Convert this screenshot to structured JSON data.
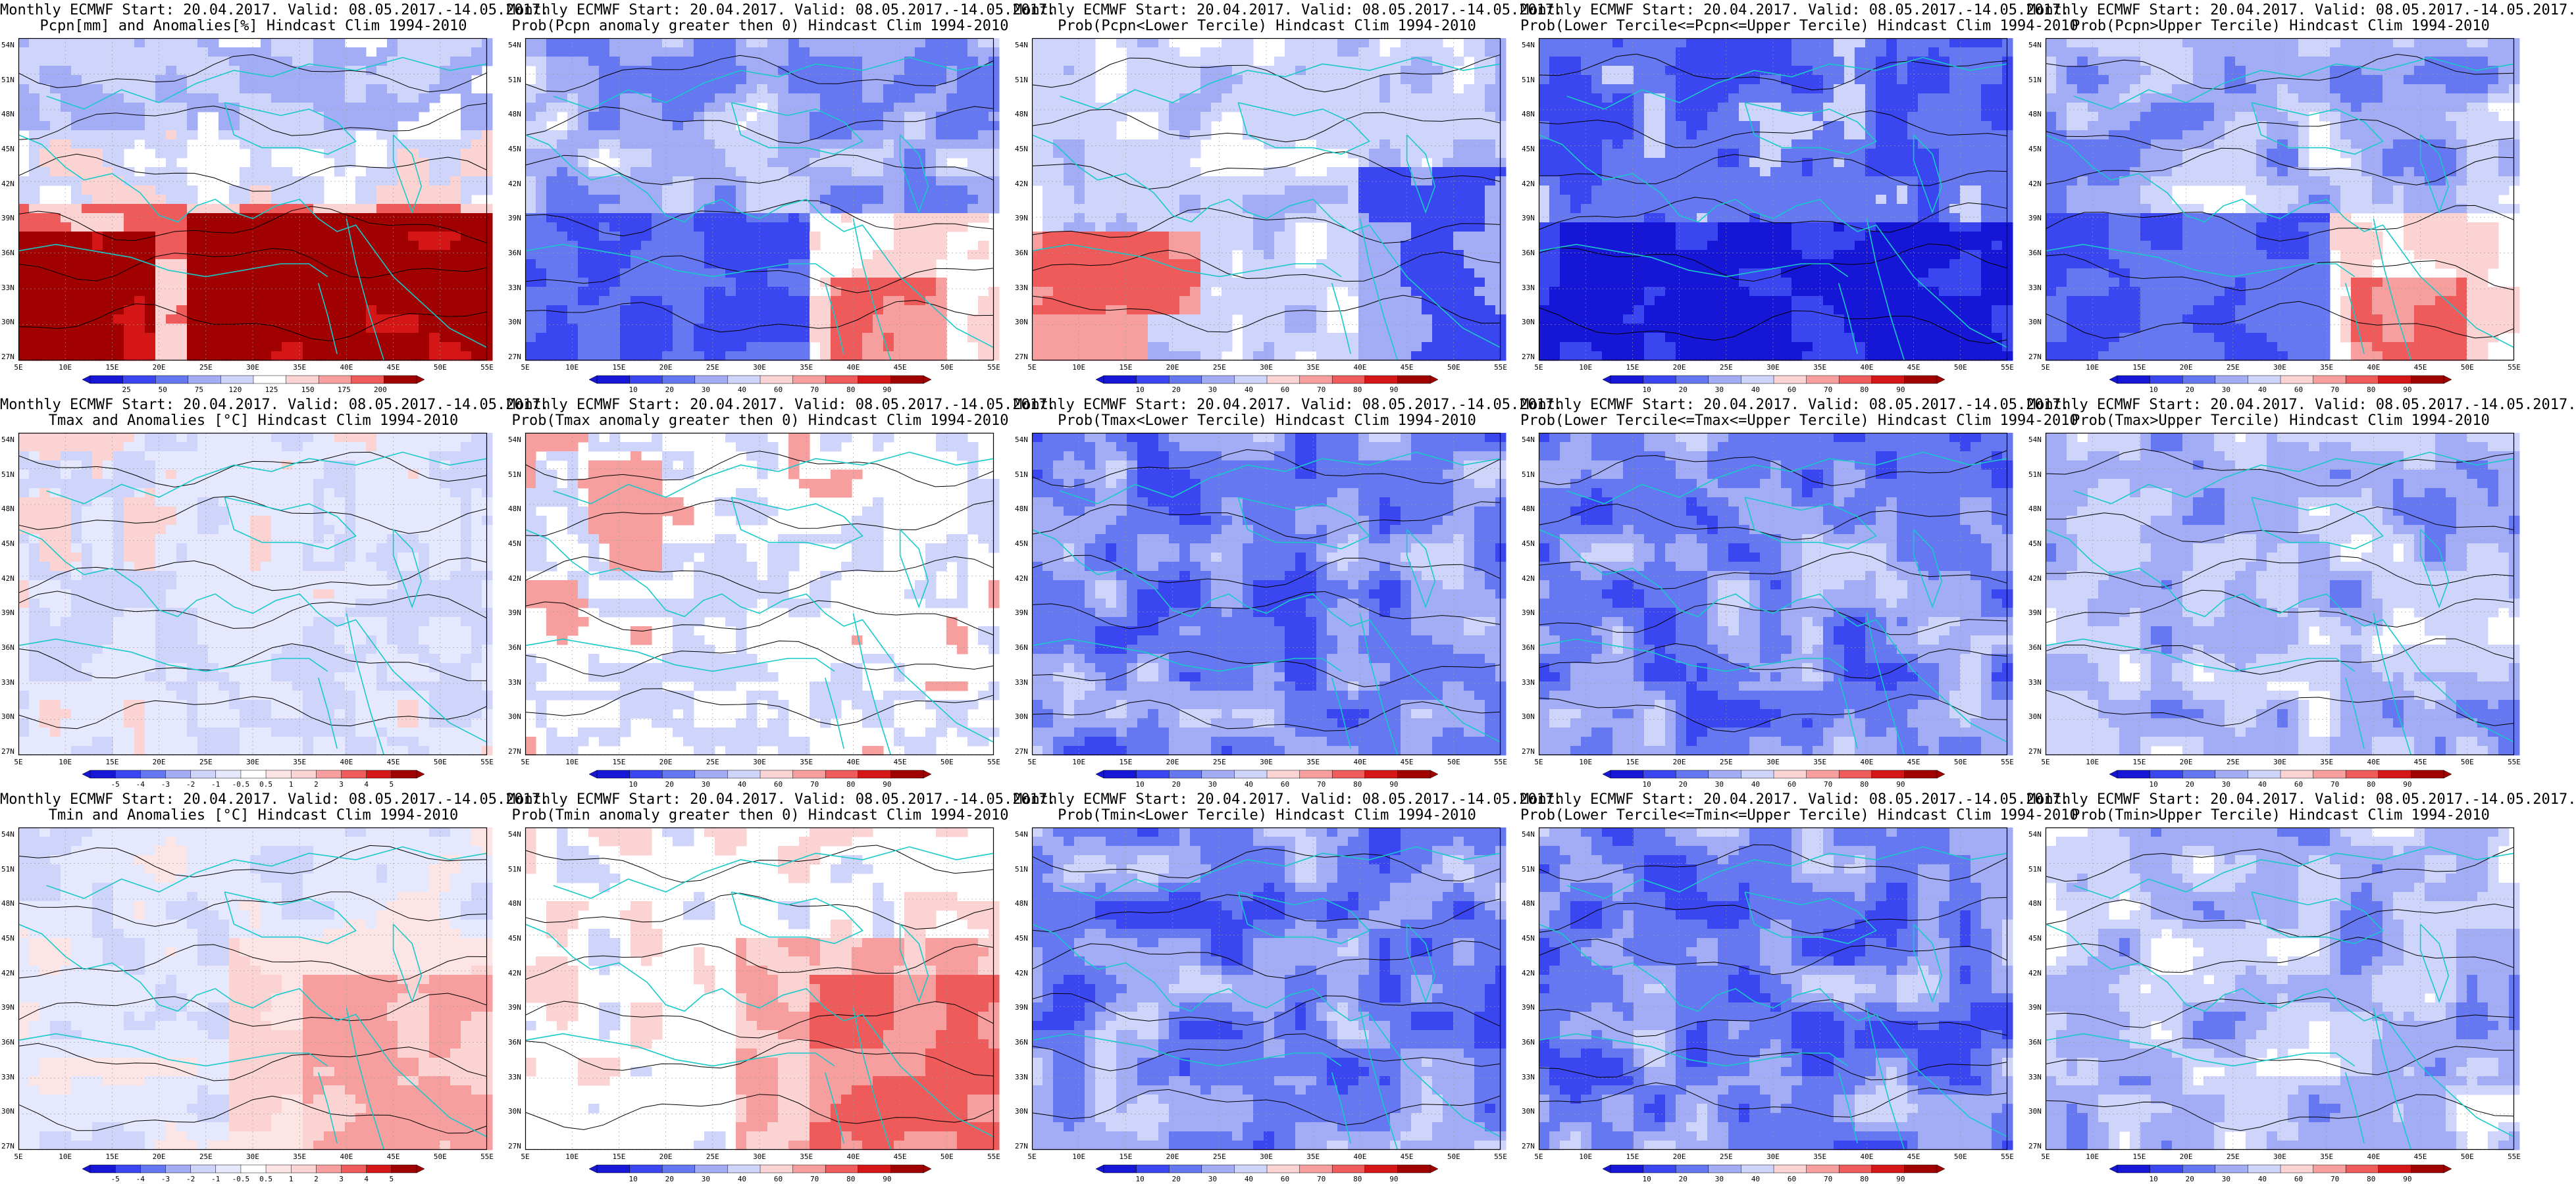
{
  "figure": {
    "panels": [
      {
        "title_line1": "Monthly ECMWF Start: 20.04.2017. Valid: 08.05.2017.-14.05.2017.",
        "title_line2": "Pcpn[mm] and Anomalies[%] Hindcast Clim 1994-2010",
        "colorbar_labels": [
          "25",
          "50",
          "75",
          "120",
          "125",
          "150",
          "175",
          "200"
        ],
        "palette": "anomaly_pcpn",
        "scheme": "pcpn"
      },
      {
        "title_line1": "Monthly ECMWF Start: 20.04.2017. Valid: 08.05.2017.-14.05.2017.",
        "title_line2": "Prob(Pcpn anomaly greater then 0) Hindcast Clim 1994-2010",
        "colorbar_labels": [
          "10",
          "20",
          "30",
          "40",
          "60",
          "70",
          "80",
          "90"
        ],
        "palette": "prob",
        "scheme": "prob_mixed"
      },
      {
        "title_line1": "Monthly ECMWF Start: 20.04.2017. Valid: 08.05.2017.-14.05.2017.",
        "title_line2": "Prob(Pcpn<Lower Tercile) Hindcast Clim 1994-2010",
        "colorbar_labels": [
          "10",
          "20",
          "30",
          "40",
          "60",
          "70",
          "80",
          "90"
        ],
        "palette": "prob",
        "scheme": "prob_south_red"
      },
      {
        "title_line1": "Monthly ECMWF Start: 20.04.2017. Valid: 08.05.2017.-14.05.2017.",
        "title_line2": "Prob(Lower Tercile<=Pcpn<=Upper Tercile) Hindcast Clim 1994-2010",
        "colorbar_labels": [
          "10",
          "20",
          "30",
          "40",
          "60",
          "70",
          "80",
          "90"
        ],
        "palette": "prob",
        "scheme": "prob_deep_blue"
      },
      {
        "title_line1": "Monthly ECMWF Start: 20.04.2017. Valid: 08.05.2017.-14.05.2017.",
        "title_line2": "Prob(Pcpn>Upper Tercile) Hindcast Clim 1994-2010",
        "colorbar_labels": [
          "10",
          "20",
          "30",
          "40",
          "60",
          "70",
          "80",
          "90"
        ],
        "palette": "prob",
        "scheme": "prob_mixed"
      },
      {
        "title_line1": "Monthly ECMWF Start: 20.04.2017. Valid: 08.05.2017.-14.05.2017.",
        "title_line2": "Tmax and Anomalies [°C] Hindcast Clim 1994-2010",
        "colorbar_labels": [
          "-5",
          "-4",
          "-3",
          "-2",
          "-1",
          "-0.5",
          "0.5",
          "1",
          "2",
          "3",
          "4",
          "5"
        ],
        "palette": "anomaly_temp",
        "scheme": "temp_light"
      },
      {
        "title_line1": "Monthly ECMWF Start: 20.04.2017. Valid: 08.05.2017.-14.05.2017.",
        "title_line2": "Prob(Tmax anomaly greater then 0) Hindcast Clim 1994-2010",
        "colorbar_labels": [
          "10",
          "20",
          "30",
          "40",
          "60",
          "70",
          "80",
          "90"
        ],
        "palette": "prob",
        "scheme": "temp_light"
      },
      {
        "title_line1": "Monthly ECMWF Start: 20.04.2017. Valid: 08.05.2017.-14.05.2017.",
        "title_line2": "Prob(Tmax<Lower Tercile) Hindcast Clim 1994-2010",
        "colorbar_labels": [
          "10",
          "20",
          "30",
          "40",
          "60",
          "70",
          "80",
          "90"
        ],
        "palette": "prob",
        "scheme": "prob_blue"
      },
      {
        "title_line1": "Monthly ECMWF Start: 20.04.2017. Valid: 08.05.2017.-14.05.2017.",
        "title_line2": "Prob(Lower Tercile<=Tmax<=Upper Tercile) Hindcast Clim 1994-2010",
        "colorbar_labels": [
          "10",
          "20",
          "30",
          "40",
          "60",
          "70",
          "80",
          "90"
        ],
        "palette": "prob",
        "scheme": "prob_blue"
      },
      {
        "title_line1": "Monthly ECMWF Start: 20.04.2017. Valid: 08.05.2017.-14.05.2017.",
        "title_line2": "Prob(Tmax>Upper Tercile) Hindcast Clim 1994-2010",
        "colorbar_labels": [
          "10",
          "20",
          "30",
          "40",
          "60",
          "70",
          "80",
          "90"
        ],
        "palette": "prob",
        "scheme": "prob_light_blue"
      },
      {
        "title_line1": "Monthly ECMWF Start: 20.04.2017. Valid: 08.05.2017.-14.05.2017.",
        "title_line2": "Tmin and Anomalies [°C] Hindcast Clim 1994-2010",
        "colorbar_labels": [
          "-5",
          "-4",
          "-3",
          "-2",
          "-1",
          "-0.5",
          "0.5",
          "1",
          "2",
          "3",
          "4",
          "5"
        ],
        "palette": "anomaly_temp",
        "scheme": "temp_warm"
      },
      {
        "title_line1": "Monthly ECMWF Start: 20.04.2017. Valid: 08.05.2017.-14.05.2017.",
        "title_line2": "Prob(Tmin anomaly greater then 0) Hindcast Clim 1994-2010",
        "colorbar_labels": [
          "10",
          "20",
          "30",
          "40",
          "60",
          "70",
          "80",
          "90"
        ],
        "palette": "prob",
        "scheme": "temp_warm"
      },
      {
        "title_line1": "Monthly ECMWF Start: 20.04.2017. Valid: 08.05.2017.-14.05.2017.",
        "title_line2": "Prob(Tmin<Lower Tercile) Hindcast Clim 1994-2010",
        "colorbar_labels": [
          "10",
          "20",
          "30",
          "40",
          "60",
          "70",
          "80",
          "90"
        ],
        "palette": "prob",
        "scheme": "prob_blue"
      },
      {
        "title_line1": "Monthly ECMWF Start: 20.04.2017. Valid: 08.05.2017.-14.05.2017.",
        "title_line2": "Prob(Lower Tercile<=Tmin<=Upper Tercile) Hindcast Clim 1994-2010",
        "colorbar_labels": [
          "10",
          "20",
          "30",
          "40",
          "60",
          "70",
          "80",
          "90"
        ],
        "palette": "prob",
        "scheme": "prob_blue"
      },
      {
        "title_line1": "Monthly ECMWF Start: 20.04.2017. Valid: 08.05.2017.-14.05.2017.",
        "title_line2": "Prob(Tmin>Upper Tercile) Hindcast Clim 1994-2010",
        "colorbar_labels": [
          "10",
          "20",
          "30",
          "40",
          "60",
          "70",
          "80",
          "90"
        ],
        "palette": "prob",
        "scheme": "prob_light_blue"
      }
    ],
    "lat_labels": [
      "54N",
      "51N",
      "48N",
      "45N",
      "42N",
      "39N",
      "36N",
      "33N",
      "30N",
      "27N"
    ],
    "lon_labels": [
      "5E",
      "10E",
      "15E",
      "20E",
      "25E",
      "30E",
      "35E",
      "40E",
      "45E",
      "50E",
      "55E"
    ],
    "colors": {
      "coast": "#19c9c9",
      "contour": "#000000",
      "prob_palette": [
        "#1616d6",
        "#3a46f0",
        "#6677f2",
        "#a3adf5",
        "#cfd4fb",
        "#ffffff",
        "#fcd3d3",
        "#f79e9e",
        "#ef5a5a",
        "#d41616",
        "#a00000"
      ],
      "pcpn_palette": [
        "#1616d6",
        "#3a46f0",
        "#6677f2",
        "#a3adf5",
        "#cfd4fb",
        "#ffffff",
        "#fcd3d3",
        "#f79e9e",
        "#ef5a5a",
        "#d41616",
        "#a00000"
      ],
      "temp_palette": [
        "#1616d6",
        "#3a46f0",
        "#6677f2",
        "#a3adf5",
        "#cfd4fb",
        "#e6e9fd",
        "#ffffff",
        "#fde5e5",
        "#fcd3d3",
        "#f79e9e",
        "#ef5a5a",
        "#d41616",
        "#a00000"
      ]
    }
  }
}
